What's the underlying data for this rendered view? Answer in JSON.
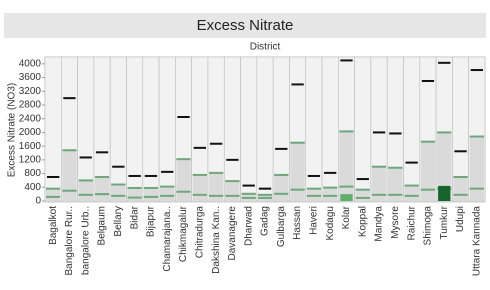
{
  "chart_data": {
    "type": "box",
    "title": "Excess Nitrate",
    "column_header": "District",
    "y_label": "Excess Nitrate (NO3)",
    "categories": [
      "Bagalkot",
      "Bangalore Rur..",
      "bangalore Urb..",
      "Belgaum",
      "Bellary",
      "Bidar",
      "Bijapur",
      "Chamarajana..",
      "Chikmagalur",
      "Chitradurga",
      "Dakshina Kan..",
      "Davanagere",
      "Dharwad",
      "Gadag",
      "Gulbarga",
      "Hassan",
      "Haveri",
      "Kodagu",
      "Kolar",
      "Koppal",
      "Mandya",
      "Mysore",
      "Raichur",
      "Shimoga",
      "Tumkur",
      "Udupi",
      "Uttara Kannada"
    ],
    "max": [
      700,
      3000,
      1270,
      1420,
      1000,
      730,
      730,
      850,
      2450,
      1550,
      1670,
      1200,
      450,
      360,
      1520,
      3400,
      730,
      820,
      4100,
      640,
      2000,
      1970,
      1120,
      3500,
      4030,
      1450,
      3820
    ],
    "upper": [
      360,
      1480,
      600,
      700,
      480,
      380,
      380,
      420,
      1220,
      760,
      820,
      580,
      210,
      180,
      760,
      1700,
      360,
      390,
      2030,
      330,
      1000,
      970,
      450,
      1730,
      2000,
      700,
      1880
    ],
    "lower": [
      120,
      300,
      180,
      200,
      150,
      100,
      120,
      150,
      270,
      180,
      150,
      150,
      90,
      90,
      210,
      330,
      150,
      150,
      420,
      90,
      180,
      180,
      150,
      330,
      360,
      180,
      360
    ],
    "bars": {
      "values": [
        null,
        null,
        null,
        null,
        null,
        null,
        null,
        null,
        null,
        null,
        null,
        null,
        null,
        null,
        null,
        null,
        null,
        null,
        200,
        null,
        null,
        null,
        null,
        null,
        440,
        null,
        null
      ],
      "colors": [
        null,
        null,
        null,
        null,
        null,
        null,
        null,
        null,
        null,
        null,
        null,
        null,
        null,
        null,
        null,
        null,
        null,
        null,
        "#5fae6e",
        null,
        null,
        null,
        null,
        null,
        "#17652d",
        null,
        null
      ]
    },
    "box_color": "#dadada",
    "quartile_color": "#6fa67d",
    "whisker_color": "#111111",
    "ylim": [
      0,
      4200
    ],
    "yticks": [
      0,
      400,
      800,
      1200,
      1600,
      2000,
      2400,
      2800,
      3200,
      3600,
      4000
    ]
  }
}
